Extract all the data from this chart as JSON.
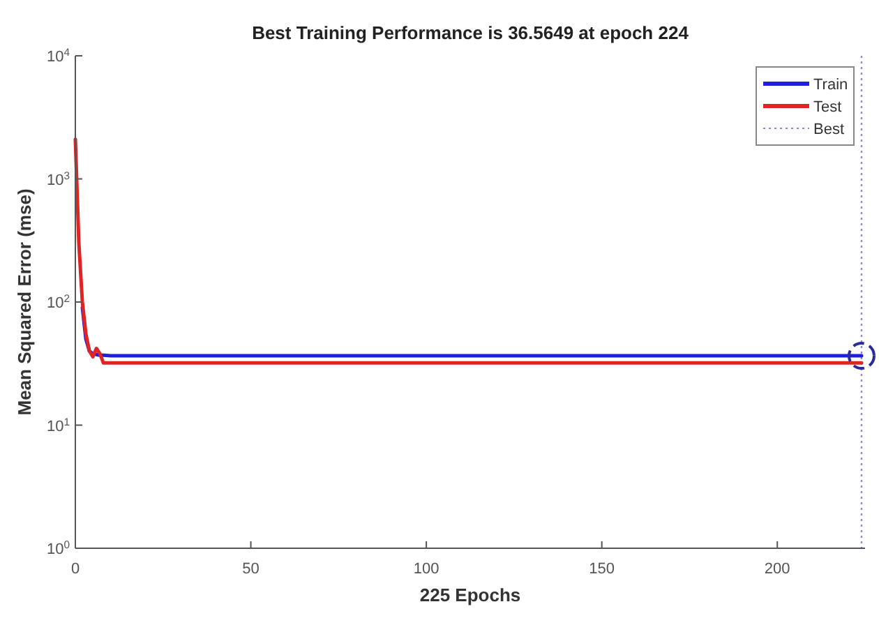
{
  "chart_data": {
    "type": "line",
    "title": "Best Training Performance is 36.5649 at epoch 224",
    "xlabel": "225 Epochs",
    "ylabel": "Mean Squared Error  (mse)",
    "log": "y",
    "xlim": [
      0,
      225
    ],
    "xticks": [
      0,
      50,
      100,
      150,
      200
    ],
    "ylim": [
      1,
      10000
    ],
    "yticks": [
      {
        "value": 1,
        "label": "10$^{0}$"
      },
      {
        "value": 10,
        "label": "10$^{1}$"
      },
      {
        "value": 100,
        "label": "10$^{2}$"
      },
      {
        "value": 1000,
        "label": "10$^{3}$"
      },
      {
        "value": 10000,
        "label": "10$^{4}$"
      }
    ],
    "grid": false,
    "legend": "top right",
    "series": [
      {
        "name": "Train",
        "color": "#1f1fdd",
        "x": [
          2,
          3,
          4,
          5,
          6,
          7,
          8,
          10,
          224
        ],
        "values": [
          90,
          50,
          40,
          38,
          37.5,
          37,
          37,
          36.6,
          36.5649
        ]
      },
      {
        "name": "Test",
        "color": "#e02424",
        "x": [
          0,
          1,
          2,
          3,
          4,
          5,
          6,
          7,
          8,
          10,
          224
        ],
        "values": [
          2100,
          300,
          100,
          55,
          40,
          36,
          42,
          38,
          32,
          32,
          32
        ]
      },
      {
        "type": "scatter",
        "marker": "circle",
        "color": "#2a2a9a",
        "x": [
          224
        ],
        "values": [
          36.5649
        ]
      }
    ],
    "ref_lines": [
      {
        "axis": "x",
        "value": 224,
        "label": "Best",
        "color": "#8a8ac8",
        "line_style": "dotted"
      }
    ]
  }
}
